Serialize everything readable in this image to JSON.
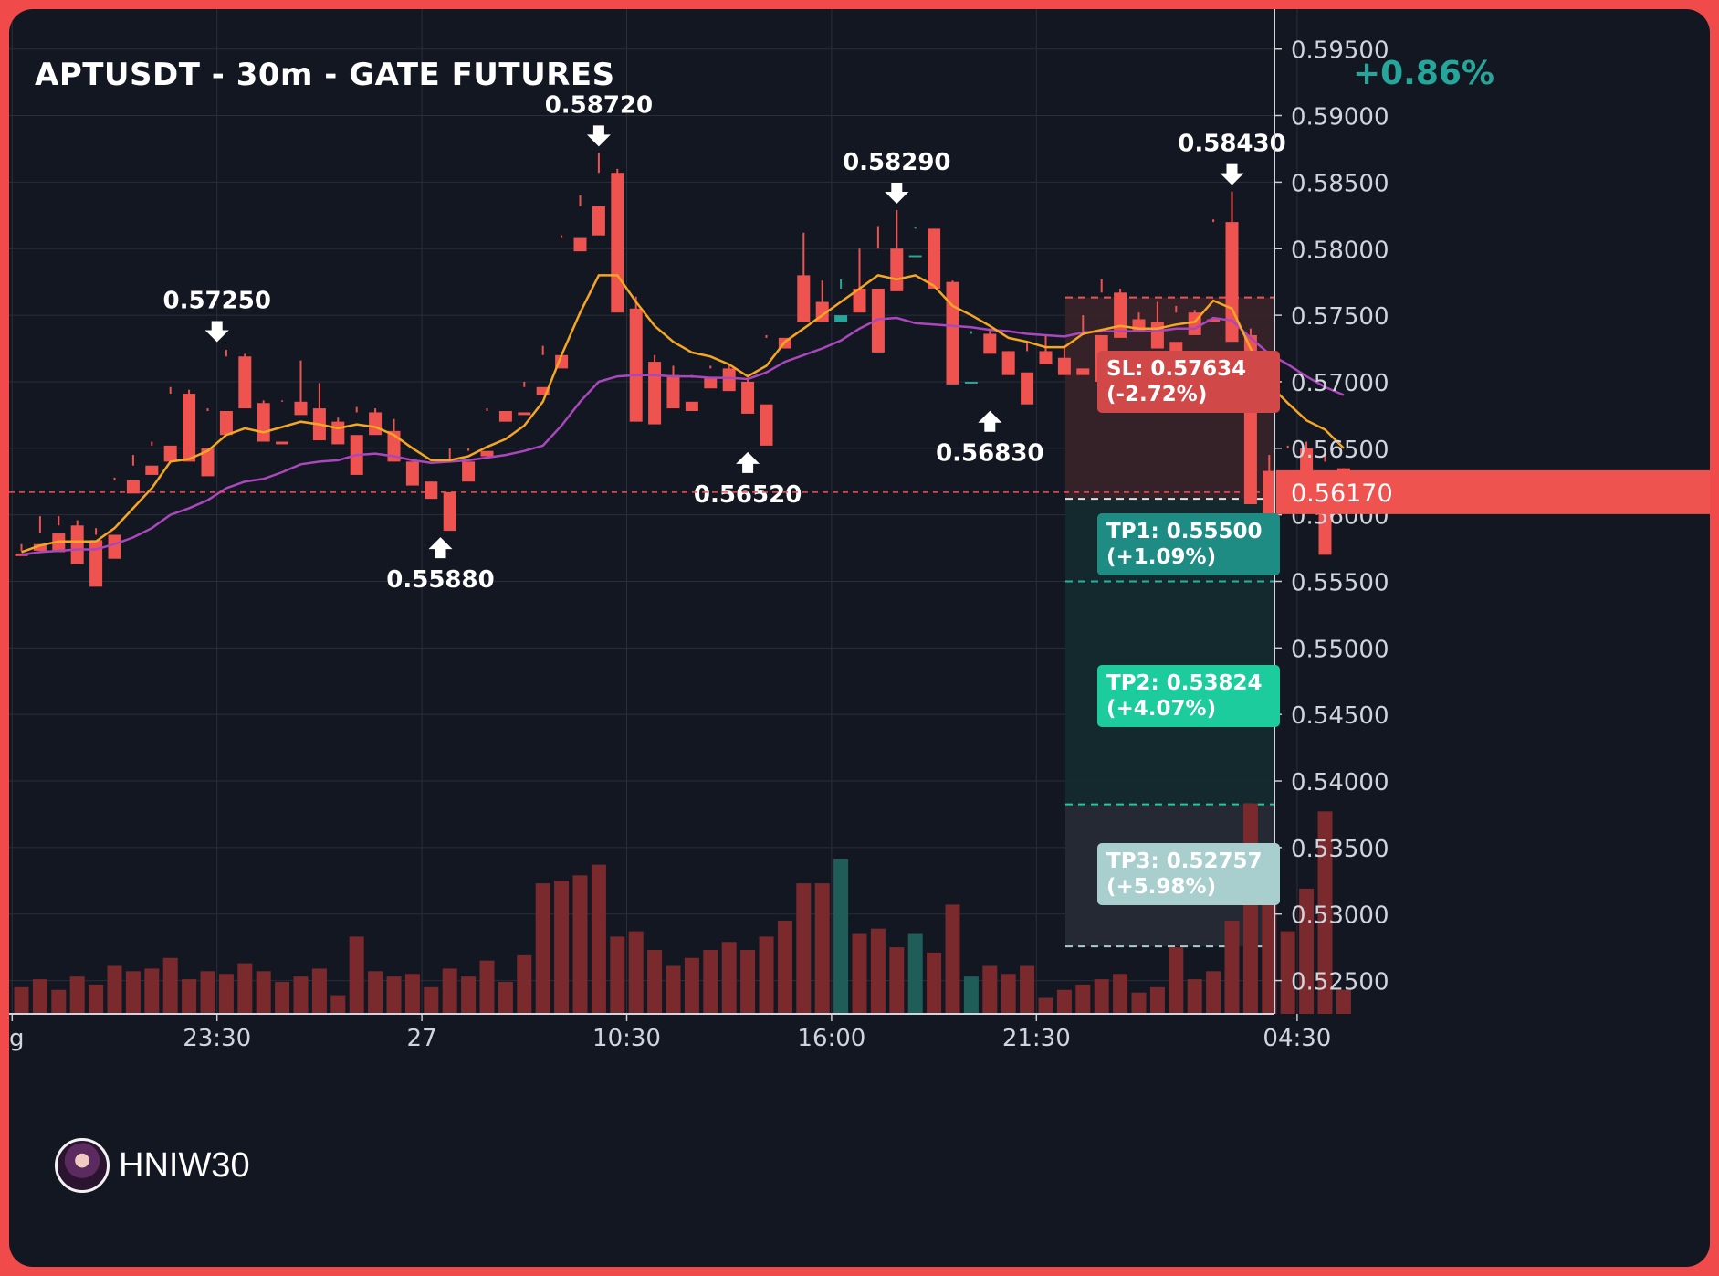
{
  "header": {
    "title": "APTUSDT - 30m - GATE FUTURES",
    "change": "+0.86%"
  },
  "watermark": {
    "text": "HNIW30",
    "avatar_icon": "avatar-icon"
  },
  "colors": {
    "up": "#26a69a",
    "down": "#ef5350",
    "ma_fast": "#f5a623",
    "ma_slow": "#ab47bc",
    "sl": "#d04848",
    "tp1": "#1f8c84",
    "tp2": "#1ccc9c",
    "tp3": "#a8cece"
  },
  "levels": {
    "sl": {
      "price": 0.57634,
      "label": "SL: 0.57634",
      "pct": "(-2.72%)"
    },
    "tp1": {
      "price": 0.555,
      "label": "TP1: 0.55500",
      "pct": "(+1.09%)"
    },
    "tp2": {
      "price": 0.53824,
      "label": "TP2: 0.53824",
      "pct": "(+4.07%)"
    },
    "tp3": {
      "price": 0.52757,
      "label": "TP3: 0.52757",
      "pct": "(+5.98%)"
    },
    "entry": {
      "price": 0.5612
    }
  },
  "chart_data": {
    "type": "candlestick",
    "ylim": [
      0.5225,
      0.598
    ],
    "yticks": [
      "0.59500",
      "0.59000",
      "0.58500",
      "0.58000",
      "0.57500",
      "0.57000",
      "0.56500",
      "0.56000",
      "0.55500",
      "0.55000",
      "0.54500",
      "0.54000",
      "0.53500",
      "0.53000",
      "0.52500"
    ],
    "xticks": [
      {
        "label": "g",
        "index": -0.5
      },
      {
        "label": "23:30",
        "index": 10.5
      },
      {
        "label": "27",
        "index": 21.5
      },
      {
        "label": "10:30",
        "index": 32.5
      },
      {
        "label": "16:00",
        "index": 43.5
      },
      {
        "label": "21:30",
        "index": 54.5
      },
      {
        "label": "04:30",
        "index": 68.5
      }
    ],
    "last_price": {
      "value": 0.5617,
      "label": "0.56170"
    },
    "candles": [
      [
        0.5571,
        0.5578,
        0.5573,
        0.5569,
        1
      ],
      [
        0.5578,
        0.5599,
        0.5586,
        0.5573,
        1.3
      ],
      [
        0.5586,
        0.5599,
        0.5592,
        0.5572,
        0.9
      ],
      [
        0.5592,
        0.5596,
        0.5581,
        0.5563,
        1.4
      ],
      [
        0.5581,
        0.559,
        0.5585,
        0.5546,
        1.1
      ],
      [
        0.5585,
        0.5628,
        0.5626,
        0.5567,
        1.8
      ],
      [
        0.5626,
        0.5645,
        0.5637,
        0.5616,
        1.6
      ],
      [
        0.5637,
        0.5655,
        0.5652,
        0.563,
        1.7
      ],
      [
        0.5652,
        0.5696,
        0.5691,
        0.564,
        2.1
      ],
      [
        0.5691,
        0.5694,
        0.565,
        0.564,
        1.3
      ],
      [
        0.565,
        0.568,
        0.5678,
        0.5629,
        1.6
      ],
      [
        0.5678,
        0.5724,
        0.5719,
        0.566,
        1.5
      ],
      [
        0.5719,
        0.5721,
        0.5684,
        0.568,
        1.9
      ],
      [
        0.5684,
        0.5686,
        0.5655,
        0.5655,
        1.6
      ],
      [
        0.5655,
        0.5686,
        0.5685,
        0.5653,
        1.2
      ],
      [
        0.5685,
        0.5716,
        0.568,
        0.5675,
        1.4
      ],
      [
        0.568,
        0.5699,
        0.567,
        0.5656,
        1.7
      ],
      [
        0.567,
        0.5673,
        0.566,
        0.5653,
        0.7
      ],
      [
        0.566,
        0.5681,
        0.5677,
        0.563,
        2.9
      ],
      [
        0.5677,
        0.568,
        0.5663,
        0.566,
        1.6
      ],
      [
        0.5663,
        0.5672,
        0.564,
        0.564,
        1.4
      ],
      [
        0.564,
        0.564,
        0.5625,
        0.5622,
        1.5
      ],
      [
        0.5625,
        0.5625,
        0.5617,
        0.5612,
        1.0
      ],
      [
        0.5617,
        0.565,
        0.564,
        0.5588,
        1.7
      ],
      [
        0.564,
        0.565,
        0.5648,
        0.5625,
        1.4
      ],
      [
        0.5648,
        0.568,
        0.5678,
        0.5644,
        2.0
      ],
      [
        0.5678,
        0.5678,
        0.5677,
        0.567,
        1.2
      ],
      [
        0.5677,
        0.57,
        0.5696,
        0.5675,
        2.2
      ],
      [
        0.5696,
        0.5727,
        0.572,
        0.569,
        4.9
      ],
      [
        0.572,
        0.581,
        0.5808,
        0.571,
        5.0
      ],
      [
        0.5808,
        0.584,
        0.5832,
        0.5798,
        5.2
      ],
      [
        0.5832,
        0.5872,
        0.5857,
        0.581,
        5.6
      ],
      [
        0.5857,
        0.586,
        0.5755,
        0.5752,
        2.9
      ],
      [
        0.5755,
        0.5764,
        0.5715,
        0.567,
        3.1
      ],
      [
        0.5715,
        0.572,
        0.5705,
        0.5668,
        2.4
      ],
      [
        0.5705,
        0.5712,
        0.5685,
        0.568,
        1.8
      ],
      [
        0.5685,
        0.5705,
        0.5703,
        0.5678,
        2.1
      ],
      [
        0.5703,
        0.5712,
        0.571,
        0.5695,
        2.4
      ],
      [
        0.571,
        0.5712,
        0.57,
        0.5693,
        2.7
      ],
      [
        0.57,
        0.5703,
        0.5683,
        0.5676,
        2.4
      ],
      [
        0.5683,
        0.5735,
        0.5733,
        0.5652,
        2.9
      ],
      [
        0.5733,
        0.578,
        0.578,
        0.5725,
        3.5
      ],
      [
        0.578,
        0.5812,
        0.576,
        0.5745,
        4.9
      ],
      [
        0.576,
        0.5776,
        0.5745,
        0.5745,
        4.9
      ],
      [
        0.5745,
        0.5777,
        0.577,
        0.575,
        5.8
      ],
      [
        0.577,
        0.58,
        0.577,
        0.5752,
        3.0
      ],
      [
        0.577,
        0.5817,
        0.58,
        0.5722,
        3.2
      ],
      [
        0.58,
        0.5829,
        0.5794,
        0.5768,
        2.5
      ],
      [
        0.5794,
        0.5816,
        0.5815,
        0.5795,
        3.0
      ],
      [
        0.5815,
        0.5815,
        0.5775,
        0.577,
        2.3
      ],
      [
        0.5775,
        0.5776,
        0.57,
        0.5698,
        4.1
      ],
      [
        0.57,
        0.5738,
        0.5736,
        0.57,
        1.4
      ],
      [
        0.5736,
        0.574,
        0.5723,
        0.5721,
        1.8
      ],
      [
        0.5723,
        0.5723,
        0.5707,
        0.5705,
        1.5
      ],
      [
        0.5707,
        0.573,
        0.5723,
        0.5683,
        1.8
      ],
      [
        0.5723,
        0.5735,
        0.5718,
        0.5713,
        0.6
      ],
      [
        0.5718,
        0.5727,
        0.571,
        0.5705,
        0.9
      ],
      [
        0.571,
        0.575,
        0.5735,
        0.5705,
        1.1
      ],
      [
        0.5735,
        0.5777,
        0.5767,
        0.57,
        1.3
      ],
      [
        0.5767,
        0.577,
        0.5747,
        0.5733,
        1.5
      ],
      [
        0.5747,
        0.5752,
        0.5745,
        0.5738,
        0.8
      ],
      [
        0.5745,
        0.576,
        0.573,
        0.5725,
        1.0
      ],
      [
        0.573,
        0.5757,
        0.5752,
        0.5715,
        2.5
      ],
      [
        0.5752,
        0.5754,
        0.5747,
        0.5735,
        1.3
      ],
      [
        0.5747,
        0.5822,
        0.582,
        0.5745,
        1.6
      ],
      [
        0.582,
        0.5843,
        0.5735,
        0.573,
        3.5
      ],
      [
        0.5735,
        0.574,
        0.5633,
        0.5608,
        7.9
      ],
      [
        0.5633,
        0.5645,
        0.5627,
        0.5575,
        4.2
      ],
      [
        0.5627,
        0.5652,
        0.565,
        0.5613,
        3.1
      ],
      [
        0.565,
        0.5655,
        0.5632,
        0.5627,
        4.7
      ],
      [
        0.5632,
        0.565,
        0.564,
        0.557,
        7.6
      ],
      [
        0.5635,
        0.5635,
        0.5617,
        0.5613,
        0.9
      ]
    ],
    "ma_fast": [
      [
        0,
        0.5572
      ],
      [
        1,
        0.5577
      ],
      [
        2,
        0.558
      ],
      [
        3,
        0.558
      ],
      [
        4,
        0.558
      ],
      [
        5,
        0.559
      ],
      [
        6,
        0.5605
      ],
      [
        7,
        0.562
      ],
      [
        8,
        0.564
      ],
      [
        9,
        0.5642
      ],
      [
        10,
        0.5648
      ],
      [
        11,
        0.566
      ],
      [
        12,
        0.5665
      ],
      [
        13,
        0.5662
      ],
      [
        14,
        0.5666
      ],
      [
        15,
        0.567
      ],
      [
        16,
        0.5668
      ],
      [
        17,
        0.5665
      ],
      [
        18,
        0.5668
      ],
      [
        19,
        0.5666
      ],
      [
        20,
        0.566
      ],
      [
        21,
        0.565
      ],
      [
        22,
        0.5641
      ],
      [
        23,
        0.5641
      ],
      [
        24,
        0.5644
      ],
      [
        25,
        0.5651
      ],
      [
        26,
        0.5657
      ],
      [
        27,
        0.5667
      ],
      [
        28,
        0.5685
      ],
      [
        29,
        0.572
      ],
      [
        30,
        0.5752
      ],
      [
        31,
        0.578
      ],
      [
        32,
        0.578
      ],
      [
        33,
        0.576
      ],
      [
        34,
        0.5742
      ],
      [
        35,
        0.573
      ],
      [
        36,
        0.5722
      ],
      [
        37,
        0.5719
      ],
      [
        38,
        0.5713
      ],
      [
        39,
        0.5704
      ],
      [
        40,
        0.5712
      ],
      [
        41,
        0.573
      ],
      [
        42,
        0.574
      ],
      [
        43,
        0.575
      ],
      [
        44,
        0.576
      ],
      [
        45,
        0.577
      ],
      [
        46,
        0.578
      ],
      [
        47,
        0.5777
      ],
      [
        48,
        0.578
      ],
      [
        49,
        0.5772
      ],
      [
        50,
        0.5757
      ],
      [
        51,
        0.575
      ],
      [
        52,
        0.5742
      ],
      [
        53,
        0.5733
      ],
      [
        54,
        0.573
      ],
      [
        55,
        0.5726
      ],
      [
        56,
        0.5726
      ],
      [
        57,
        0.5736
      ],
      [
        58,
        0.5739
      ],
      [
        59,
        0.5742
      ],
      [
        60,
        0.574
      ],
      [
        61,
        0.574
      ],
      [
        62,
        0.5743
      ],
      [
        63,
        0.5745
      ],
      [
        64,
        0.5761
      ],
      [
        65,
        0.5755
      ],
      [
        66,
        0.5725
      ],
      [
        67,
        0.5698
      ],
      [
        68,
        0.5684
      ],
      [
        69,
        0.5671
      ],
      [
        70,
        0.5664
      ],
      [
        71,
        0.565
      ]
    ],
    "ma_slow": [
      [
        0,
        0.557
      ],
      [
        1,
        0.5572
      ],
      [
        2,
        0.5573
      ],
      [
        3,
        0.5574
      ],
      [
        4,
        0.5574
      ],
      [
        5,
        0.5578
      ],
      [
        6,
        0.5583
      ],
      [
        7,
        0.559
      ],
      [
        8,
        0.56
      ],
      [
        9,
        0.5605
      ],
      [
        10,
        0.5611
      ],
      [
        11,
        0.562
      ],
      [
        12,
        0.5625
      ],
      [
        13,
        0.5627
      ],
      [
        14,
        0.5632
      ],
      [
        15,
        0.5638
      ],
      [
        16,
        0.564
      ],
      [
        17,
        0.5641
      ],
      [
        18,
        0.5645
      ],
      [
        19,
        0.5646
      ],
      [
        20,
        0.5644
      ],
      [
        21,
        0.5641
      ],
      [
        22,
        0.5639
      ],
      [
        23,
        0.564
      ],
      [
        24,
        0.5641
      ],
      [
        25,
        0.5643
      ],
      [
        26,
        0.5645
      ],
      [
        27,
        0.5648
      ],
      [
        28,
        0.5652
      ],
      [
        29,
        0.5667
      ],
      [
        30,
        0.5685
      ],
      [
        31,
        0.57
      ],
      [
        32,
        0.5704
      ],
      [
        33,
        0.5705
      ],
      [
        34,
        0.5705
      ],
      [
        35,
        0.5704
      ],
      [
        36,
        0.5704
      ],
      [
        37,
        0.5703
      ],
      [
        38,
        0.5703
      ],
      [
        39,
        0.5702
      ],
      [
        40,
        0.5707
      ],
      [
        41,
        0.5715
      ],
      [
        42,
        0.572
      ],
      [
        43,
        0.5725
      ],
      [
        44,
        0.5731
      ],
      [
        45,
        0.574
      ],
      [
        46,
        0.5747
      ],
      [
        47,
        0.5748
      ],
      [
        48,
        0.5744
      ],
      [
        49,
        0.5743
      ],
      [
        50,
        0.5742
      ],
      [
        51,
        0.5741
      ],
      [
        52,
        0.5739
      ],
      [
        53,
        0.5738
      ],
      [
        54,
        0.5736
      ],
      [
        55,
        0.5735
      ],
      [
        56,
        0.5734
      ],
      [
        57,
        0.5737
      ],
      [
        58,
        0.5738
      ],
      [
        59,
        0.5738
      ],
      [
        60,
        0.5738
      ],
      [
        61,
        0.5738
      ],
      [
        62,
        0.574
      ],
      [
        63,
        0.574
      ],
      [
        64,
        0.5748
      ],
      [
        65,
        0.5746
      ],
      [
        66,
        0.5733
      ],
      [
        67,
        0.5721
      ],
      [
        68,
        0.5713
      ],
      [
        69,
        0.5704
      ],
      [
        70,
        0.5696
      ],
      [
        71,
        0.569
      ]
    ],
    "annotations": [
      {
        "index": 10.5,
        "price": 0.5725,
        "label": "0.57250",
        "side": "above"
      },
      {
        "index": 31,
        "price": 0.5872,
        "label": "0.58720",
        "side": "above"
      },
      {
        "index": 47,
        "price": 0.5829,
        "label": "0.58290",
        "side": "above"
      },
      {
        "index": 65,
        "price": 0.5843,
        "label": "0.58430",
        "side": "above"
      },
      {
        "index": 22.5,
        "price": 0.5588,
        "label": "0.55880",
        "side": "below"
      },
      {
        "index": 39,
        "price": 0.5652,
        "label": "0.56520",
        "side": "below"
      },
      {
        "index": 52,
        "price": 0.5683,
        "label": "0.56830",
        "side": "below"
      }
    ]
  }
}
